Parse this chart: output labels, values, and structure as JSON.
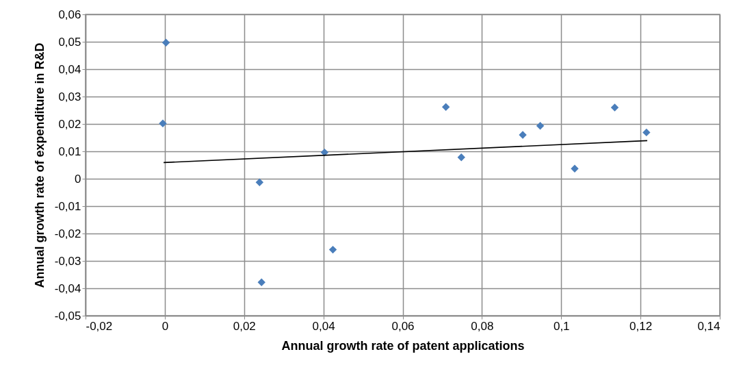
{
  "chart_data": {
    "type": "scatter",
    "xlabel": "Annual growth rate of patent applications",
    "ylabel": "Annual growth rate of expenditure in R&D",
    "series": [
      {
        "color": "#4a7ebb",
        "marker": "diamond",
        "x": [
          0.0003,
          -0.0005,
          0.0239,
          0.0244,
          0.0403,
          0.0424,
          0.0709,
          0.0748,
          0.0903,
          0.0947,
          0.1034,
          0.1135,
          0.1215
        ],
        "values": [
          0.0497,
          0.0202,
          -0.0013,
          -0.0378,
          0.0096,
          -0.0259,
          0.0262,
          0.0078,
          0.016,
          0.0193,
          0.0037,
          0.026,
          0.0169
        ]
      },
      {
        "type": "line",
        "color": "#000000",
        "marker": "none",
        "line_style": "solid",
        "x": [
          -0.0003,
          0.1217
        ],
        "values": [
          0.0059,
          0.0139
        ]
      }
    ],
    "xlim": [
      -0.02,
      0.14
    ],
    "xticks": [
      {
        "value": -0.02,
        "label": "-0,02"
      },
      0,
      {
        "value": 0.02,
        "label": "0,02"
      },
      {
        "value": 0.04,
        "label": "0,04"
      },
      {
        "value": 0.06,
        "label": "0,06"
      },
      {
        "value": 0.08,
        "label": "0,08"
      },
      {
        "value": 0.1,
        "label": "0,1"
      },
      {
        "value": 0.12,
        "label": "0,12"
      },
      {
        "value": 0.14,
        "label": "0,14"
      }
    ],
    "ylim": [
      -0.05,
      0.06
    ],
    "yticks": [
      {
        "value": -0.05,
        "label": "-0,05"
      },
      {
        "value": -0.04,
        "label": "-0,04"
      },
      {
        "value": -0.03,
        "label": "-0,03"
      },
      {
        "value": -0.02,
        "label": "-0,02"
      },
      {
        "value": -0.01,
        "label": "-0,01"
      },
      0,
      {
        "value": 0.01,
        "label": "0,01"
      },
      {
        "value": 0.02,
        "label": "0,02"
      },
      {
        "value": 0.03,
        "label": "0,03"
      },
      {
        "value": 0.04,
        "label": "0,04"
      },
      {
        "value": 0.05,
        "label": "0,05"
      },
      {
        "value": 0.06,
        "label": "0,06"
      }
    ],
    "grid": true
  }
}
